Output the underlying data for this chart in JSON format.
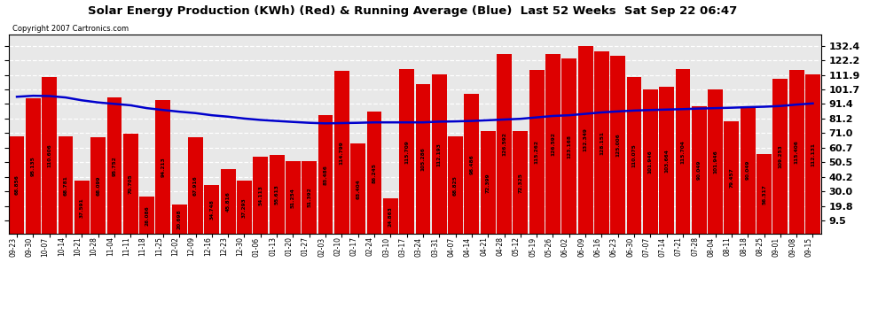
{
  "title": "Solar Energy Production (KWh) (Red) & Running Average (Blue)  Last 52 Weeks  Sat Sep 22 06:47",
  "copyright": "Copyright 2007 Cartronics.com",
  "bar_color": "#dd0000",
  "line_color": "#0000cc",
  "background_color": "#ffffff",
  "plot_bg_color": "#e8e8e8",
  "grid_color": "#ffffff",
  "yticks": [
    9.5,
    19.8,
    30.0,
    40.2,
    50.5,
    60.7,
    71.0,
    81.2,
    91.4,
    101.7,
    111.9,
    122.2,
    132.4
  ],
  "ylim_min": 0,
  "ylim_max": 140,
  "dates": [
    "09-23",
    "09-30",
    "10-07",
    "10-14",
    "10-21",
    "10-28",
    "11-04",
    "11-11",
    "11-18",
    "11-25",
    "12-02",
    "12-09",
    "12-16",
    "12-23",
    "12-30",
    "01-06",
    "01-13",
    "01-20",
    "01-27",
    "02-03",
    "02-10",
    "02-17",
    "02-24",
    "03-10",
    "03-17",
    "03-24",
    "03-31",
    "04-07",
    "04-14",
    "04-21",
    "04-28",
    "05-12",
    "05-19",
    "05-26",
    "06-02",
    "06-09",
    "06-16",
    "06-23",
    "06-30",
    "07-07",
    "07-14",
    "07-21",
    "07-28",
    "08-04",
    "08-11",
    "08-18",
    "08-25",
    "09-01",
    "09-08",
    "09-15"
  ],
  "values": [
    68.856,
    95.135,
    110.606,
    68.781,
    37.591,
    68.099,
    95.752,
    70.705,
    26.086,
    94.213,
    20.698,
    67.916,
    34.748,
    45.816,
    37.293,
    54.113,
    55.613,
    51.254,
    51.392,
    83.486,
    114.799,
    63.404,
    86.245,
    24.863,
    115.709,
    105.286,
    112.193,
    68.825,
    98.486,
    72.399,
    126.592,
    72.325,
    115.262,
    126.592,
    123.168,
    132.349,
    128.151,
    125.006,
    110.075,
    101.946,
    103.664,
    115.704,
    90.049,
    101.946,
    79.457,
    90.049,
    56.317,
    109.253,
    115.406,
    112.131
  ],
  "avg_values": [
    96.5,
    97.2,
    97.0,
    96.0,
    94.0,
    92.5,
    91.5,
    90.5,
    88.5,
    87.2,
    86.0,
    85.0,
    83.5,
    82.5,
    81.2,
    80.2,
    79.5,
    78.8,
    78.2,
    77.8,
    78.0,
    78.2,
    78.5,
    78.5,
    78.5,
    78.5,
    79.0,
    79.2,
    79.5,
    80.0,
    80.5,
    81.0,
    82.0,
    83.0,
    83.5,
    84.5,
    85.5,
    86.2,
    86.8,
    87.2,
    87.5,
    87.8,
    88.2,
    88.5,
    88.8,
    89.2,
    89.5,
    90.0,
    91.0,
    91.8
  ],
  "title_fontsize": 9.5,
  "copyright_fontsize": 6,
  "ytick_fontsize": 8,
  "val_label_fontsize": 4.2,
  "date_label_fontsize": 5.5
}
